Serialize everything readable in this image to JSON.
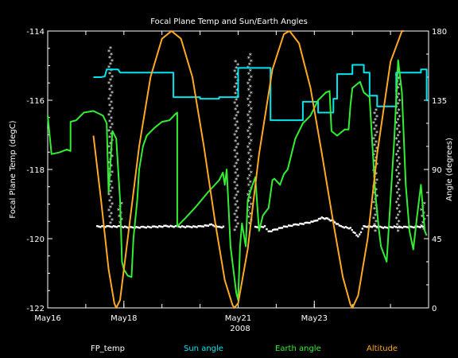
{
  "chart_data": {
    "type": "line",
    "title": "Focal Plane Temp and Sun/Earth Angles",
    "xlabel": "2008",
    "ylabel_left": "Focal Plane Temp (degC)",
    "ylabel_right": "Angle (degrees)",
    "ylim_left": [
      -122,
      -114
    ],
    "ylim_right": [
      0,
      180
    ],
    "xlim": [
      0,
      10
    ],
    "x_ticks": [
      {
        "x": 0.0,
        "label": "May16"
      },
      {
        "x": 2.0,
        "label": "May18"
      },
      {
        "x": 5.0,
        "label": "May21"
      },
      {
        "x": 7.0,
        "label": "May23"
      }
    ],
    "y_ticks_left": [
      "-122",
      "-120",
      "-118",
      "-116",
      "-114"
    ],
    "y_ticks_right": [
      "0",
      "45",
      "90",
      "135",
      "180"
    ],
    "grid": false,
    "legend_position": "bottom",
    "series": [
      {
        "name": "FP_temp",
        "axis": "left",
        "color": "#ffffff",
        "style": "asterisk",
        "points": [
          [
            1.3,
            -119.65
          ],
          [
            1.6,
            -119.65
          ],
          [
            1.9,
            -119.65
          ],
          [
            2.2,
            -119.68
          ],
          [
            2.5,
            -119.67
          ],
          [
            2.8,
            -119.66
          ],
          [
            3.1,
            -119.64
          ],
          [
            3.4,
            -119.65
          ],
          [
            3.7,
            -119.66
          ],
          [
            4.0,
            -119.65
          ],
          [
            4.3,
            -119.6
          ],
          [
            4.5,
            -119.67
          ],
          [
            4.65,
            -119.66
          ],
          [
            5.45,
            -119.67
          ],
          [
            5.7,
            -119.65
          ],
          [
            5.8,
            -119.8
          ],
          [
            5.95,
            -119.75
          ],
          [
            6.2,
            -119.66
          ],
          [
            6.5,
            -119.6
          ],
          [
            6.8,
            -119.55
          ],
          [
            7.0,
            -119.5
          ],
          [
            7.2,
            -119.4
          ],
          [
            7.35,
            -119.43
          ],
          [
            7.5,
            -119.5
          ],
          [
            7.7,
            -119.65
          ],
          [
            7.95,
            -119.7
          ],
          [
            8.15,
            -119.95
          ],
          [
            8.3,
            -119.65
          ],
          [
            8.6,
            -119.65
          ],
          [
            8.85,
            -119.68
          ],
          [
            9.1,
            -119.66
          ],
          [
            9.4,
            -119.67
          ],
          [
            9.7,
            -119.66
          ],
          [
            9.9,
            -119.65
          ]
        ],
        "spikes": [
          {
            "x": 1.65,
            "y_min": -119.6,
            "y_max": -114.5
          },
          {
            "x": 1.9,
            "y_min": -119.6,
            "y_max": -119.0
          },
          {
            "x": 4.95,
            "y_min": -119.8,
            "y_max": -114.9
          },
          {
            "x": 5.3,
            "y_min": -119.6,
            "y_max": -114.7
          },
          {
            "x": 8.6,
            "y_min": -119.8,
            "y_max": -116.3
          },
          {
            "x": 9.2,
            "y_min": -119.8,
            "y_max": -115.2
          },
          {
            "x": 9.85,
            "y_min": -119.8,
            "y_max": -119.0
          }
        ]
      },
      {
        "name": "Sun angle",
        "axis": "right",
        "color": "#00e5ee",
        "points": [
          [
            1.2,
            150
          ],
          [
            1.4,
            150
          ],
          [
            1.5,
            150.5
          ],
          [
            1.55,
            155
          ],
          [
            1.7,
            155
          ],
          [
            1.85,
            155
          ],
          [
            1.9,
            153
          ],
          [
            3.3,
            153
          ],
          [
            3.3,
            137
          ],
          [
            4.0,
            137
          ],
          [
            4.0,
            136
          ],
          [
            4.5,
            136
          ],
          [
            4.5,
            137
          ],
          [
            5.0,
            137
          ],
          [
            5.0,
            156
          ],
          [
            5.85,
            156
          ],
          [
            5.85,
            122
          ],
          [
            6.2,
            122
          ],
          [
            6.2,
            122
          ],
          [
            6.7,
            122
          ],
          [
            6.7,
            134
          ],
          [
            7.1,
            134
          ],
          [
            7.1,
            127
          ],
          [
            7.5,
            127
          ],
          [
            7.5,
            136
          ],
          [
            7.6,
            136
          ],
          [
            7.6,
            152
          ],
          [
            8.0,
            152
          ],
          [
            8.0,
            158
          ],
          [
            8.3,
            158
          ],
          [
            8.3,
            153
          ],
          [
            8.45,
            153
          ],
          [
            8.45,
            138
          ],
          [
            8.65,
            138
          ],
          [
            8.65,
            131
          ],
          [
            9.15,
            131
          ],
          [
            9.15,
            153
          ],
          [
            9.8,
            153
          ],
          [
            9.8,
            155
          ],
          [
            9.95,
            155
          ],
          [
            9.95,
            135
          ],
          [
            10.0,
            135
          ]
        ]
      },
      {
        "name": "Earth angle",
        "axis": "right",
        "color": "#33ee33",
        "points": [
          [
            0.0,
            125
          ],
          [
            0.1,
            100
          ],
          [
            0.3,
            101
          ],
          [
            0.5,
            103
          ],
          [
            0.6,
            102
          ],
          [
            0.6,
            121
          ],
          [
            0.75,
            122
          ],
          [
            0.95,
            127
          ],
          [
            1.2,
            128
          ],
          [
            1.45,
            125
          ],
          [
            1.55,
            120
          ],
          [
            1.6,
            75
          ],
          [
            1.7,
            115
          ],
          [
            1.8,
            110
          ],
          [
            1.9,
            70
          ],
          [
            1.95,
            30
          ],
          [
            2.0,
            25
          ],
          [
            2.1,
            21
          ],
          [
            2.2,
            20
          ],
          [
            2.25,
            45
          ],
          [
            2.35,
            70
          ],
          [
            2.4,
            90
          ],
          [
            2.5,
            105
          ],
          [
            2.6,
            112
          ],
          [
            2.8,
            117
          ],
          [
            3.0,
            121
          ],
          [
            3.2,
            122
          ],
          [
            3.35,
            126
          ],
          [
            3.4,
            127
          ],
          [
            3.4,
            53
          ],
          [
            3.6,
            58
          ],
          [
            3.9,
            66
          ],
          [
            4.2,
            75
          ],
          [
            4.5,
            83
          ],
          [
            4.6,
            88
          ],
          [
            4.65,
            80
          ],
          [
            4.7,
            90
          ],
          [
            4.8,
            40
          ],
          [
            4.95,
            10
          ],
          [
            5.0,
            5
          ],
          [
            5.05,
            40
          ],
          [
            5.1,
            55
          ],
          [
            5.2,
            40
          ],
          [
            5.25,
            70
          ],
          [
            5.35,
            78
          ],
          [
            5.45,
            85
          ],
          [
            5.55,
            50
          ],
          [
            5.65,
            60
          ],
          [
            5.8,
            65
          ],
          [
            5.9,
            83
          ],
          [
            5.95,
            84
          ],
          [
            6.1,
            80
          ],
          [
            6.2,
            87
          ],
          [
            6.3,
            90
          ],
          [
            6.5,
            110
          ],
          [
            6.7,
            120
          ],
          [
            6.9,
            125
          ],
          [
            7.1,
            135
          ],
          [
            7.3,
            140
          ],
          [
            7.4,
            141
          ],
          [
            7.45,
            115
          ],
          [
            7.6,
            112
          ],
          [
            7.8,
            116
          ],
          [
            7.9,
            116
          ],
          [
            7.95,
            132
          ],
          [
            8.0,
            143
          ],
          [
            8.2,
            147
          ],
          [
            8.3,
            140
          ],
          [
            8.45,
            137
          ],
          [
            8.6,
            75
          ],
          [
            8.7,
            50
          ],
          [
            8.75,
            40
          ],
          [
            8.9,
            30
          ],
          [
            8.95,
            50
          ],
          [
            9.0,
            70
          ],
          [
            9.1,
            110
          ],
          [
            9.2,
            161
          ],
          [
            9.3,
            140
          ],
          [
            9.4,
            80
          ],
          [
            9.5,
            50
          ],
          [
            9.6,
            38
          ],
          [
            9.7,
            60
          ],
          [
            9.8,
            80
          ],
          [
            9.9,
            50
          ],
          [
            9.95,
            47
          ]
        ]
      },
      {
        "name": "Altitude",
        "axis": "right",
        "color": "#ffaa22",
        "points": [
          [
            1.2,
            112
          ],
          [
            1.4,
            70
          ],
          [
            1.6,
            25
          ],
          [
            1.75,
            3
          ],
          [
            1.8,
            0
          ],
          [
            1.9,
            5
          ],
          [
            2.1,
            45
          ],
          [
            2.4,
            105
          ],
          [
            2.7,
            150
          ],
          [
            3.0,
            175
          ],
          [
            3.25,
            180
          ],
          [
            3.5,
            175
          ],
          [
            3.8,
            150
          ],
          [
            4.1,
            105
          ],
          [
            4.4,
            55
          ],
          [
            4.65,
            18
          ],
          [
            4.85,
            2
          ],
          [
            4.9,
            0
          ],
          [
            5.0,
            3
          ],
          [
            5.25,
            38
          ],
          [
            5.55,
            100
          ],
          [
            5.9,
            155
          ],
          [
            6.2,
            178
          ],
          [
            6.35,
            180
          ],
          [
            6.6,
            172
          ],
          [
            6.9,
            143
          ],
          [
            7.2,
            100
          ],
          [
            7.5,
            55
          ],
          [
            7.75,
            20
          ],
          [
            7.95,
            2
          ],
          [
            8.0,
            0
          ],
          [
            8.15,
            8
          ],
          [
            8.4,
            45
          ],
          [
            8.65,
            100
          ],
          [
            9.0,
            160
          ],
          [
            9.3,
            180
          ],
          [
            9.35,
            180
          ]
        ]
      }
    ]
  },
  "legend": [
    {
      "label": "FP_temp",
      "color": "#ffffff"
    },
    {
      "label": "Sun angle",
      "color": "#00e5ee"
    },
    {
      "label": "Earth angle",
      "color": "#33ee33"
    },
    {
      "label": "Altitude",
      "color": "#ffaa22"
    }
  ]
}
